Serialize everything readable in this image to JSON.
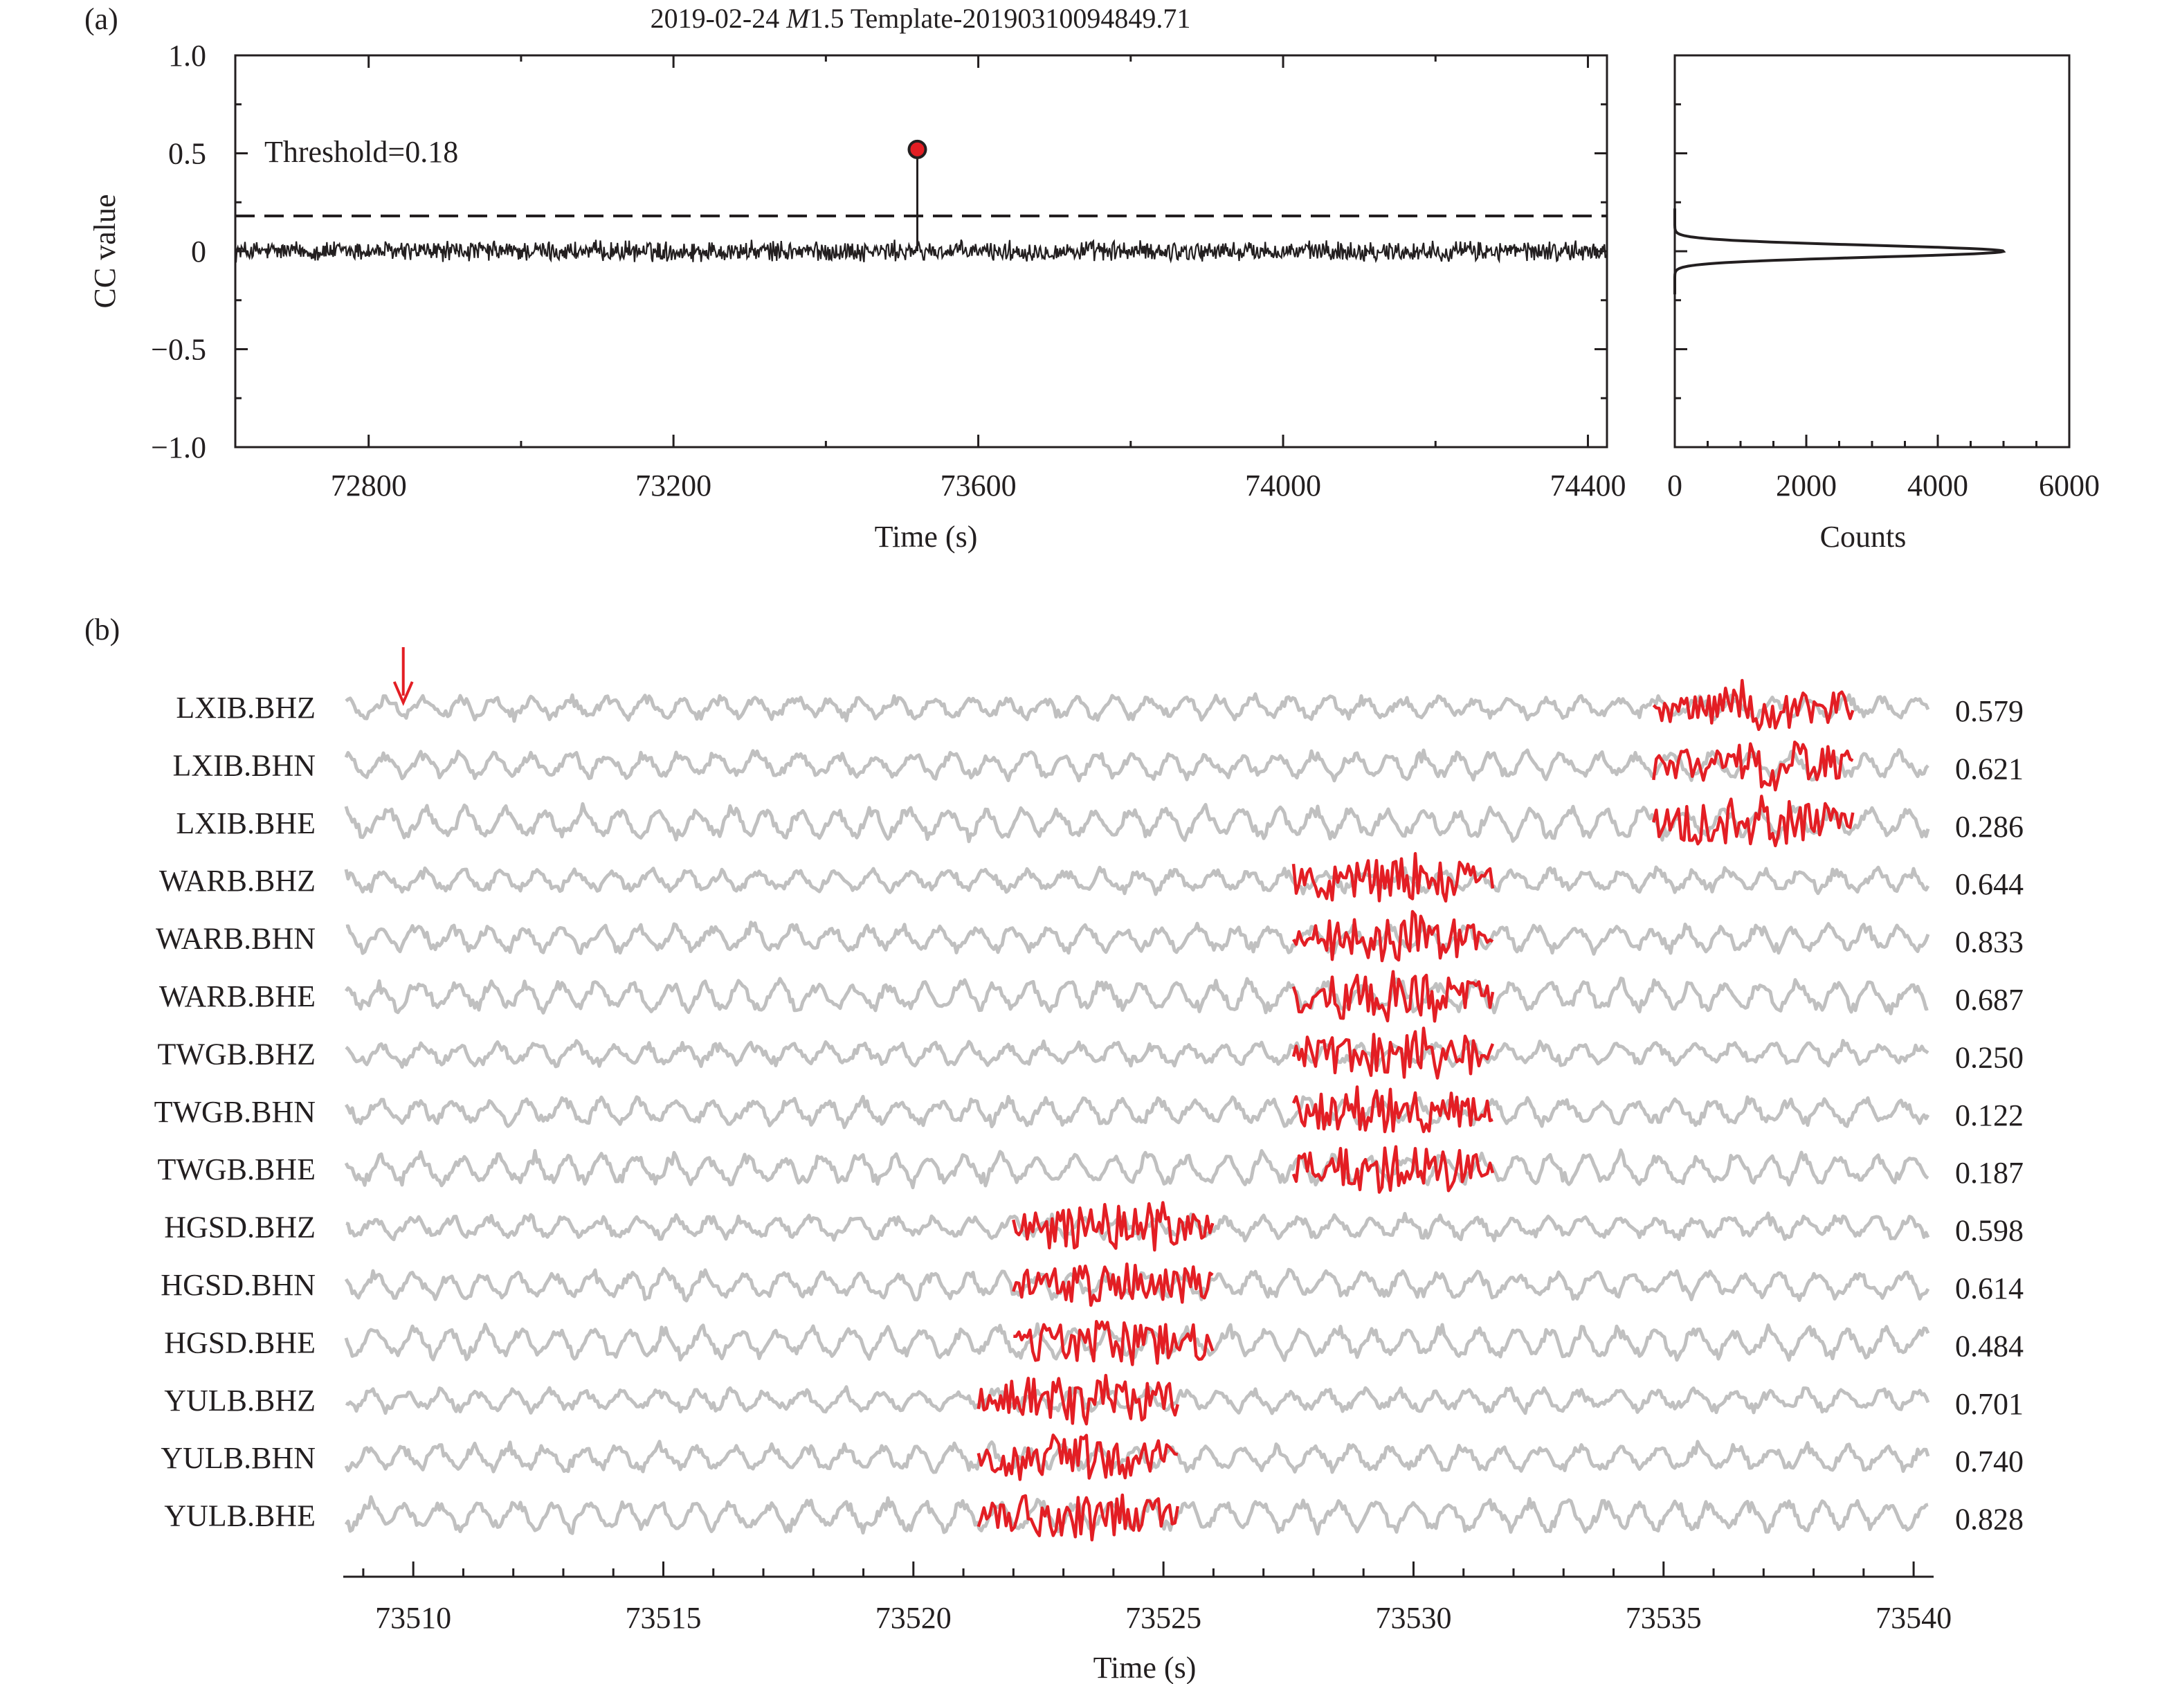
{
  "chart_data": [
    {
      "panel": "(a)",
      "type": "line",
      "title_parts": [
        "2019-02-24 ",
        "M",
        "1.5 Template-20190310094849.71"
      ],
      "xlabel": "Time (s)",
      "ylabel": "CC value",
      "xlim": [
        72625,
        74425
      ],
      "ylim": [
        -1.0,
        1.0
      ],
      "xticks": [
        72800,
        73200,
        73600,
        74000,
        74400
      ],
      "yticks": [
        "1.0",
        "0.5",
        "0",
        "−0.5",
        "−1.0"
      ],
      "threshold": 0.18,
      "threshold_label": "Threshold=0.18",
      "threshold_style": "dashed",
      "detections": [
        {
          "x": 73520,
          "y": 0.52,
          "color": "#e31e24"
        }
      ],
      "series": [
        {
          "description_values": "noise around 0 with amplitude ~0.04",
          "color": "#231f20"
        }
      ],
      "grid": false
    },
    {
      "panel": "",
      "type": "line",
      "xlabel": "Counts",
      "xlim": [
        0,
        6000
      ],
      "xticks": [
        0,
        2000,
        4000,
        6000
      ],
      "ylim": [
        -1.0,
        1.0
      ],
      "distribution": {
        "mean": 0.0,
        "sd": 0.03,
        "peak": 5000
      },
      "grid": false
    },
    {
      "panel": "(b)",
      "type": "line",
      "xlabel": "Time (s)",
      "xlim": [
        73508.6,
        73540.4
      ],
      "xticks": [
        73510,
        73515,
        73520,
        73525,
        73530,
        73535,
        73540
      ],
      "arrow_at": 73509.8,
      "trace_color": "#c0c0c0",
      "template_color": "#e31e24",
      "traces": [
        {
          "label": "LXIB.BHZ",
          "cc": "0.579",
          "tpl_start": 73534.8,
          "tpl_end": 73538.8
        },
        {
          "label": "LXIB.BHN",
          "cc": "0.621",
          "tpl_start": 73534.8,
          "tpl_end": 73538.8
        },
        {
          "label": "LXIB.BHE",
          "cc": "0.286",
          "tpl_start": 73534.8,
          "tpl_end": 73538.8
        },
        {
          "label": "WARB.BHZ",
          "cc": "0.644",
          "tpl_start": 73527.6,
          "tpl_end": 73531.6
        },
        {
          "label": "WARB.BHN",
          "cc": "0.833",
          "tpl_start": 73527.6,
          "tpl_end": 73531.6
        },
        {
          "label": "WARB.BHE",
          "cc": "0.687",
          "tpl_start": 73527.6,
          "tpl_end": 73531.6
        },
        {
          "label": "TWGB.BHZ",
          "cc": "0.250",
          "tpl_start": 73527.6,
          "tpl_end": 73531.6
        },
        {
          "label": "TWGB.BHN",
          "cc": "0.122",
          "tpl_start": 73527.6,
          "tpl_end": 73531.6
        },
        {
          "label": "TWGB.BHE",
          "cc": "0.187",
          "tpl_start": 73527.6,
          "tpl_end": 73531.6
        },
        {
          "label": "HGSD.BHZ",
          "cc": "0.598",
          "tpl_start": 73522.0,
          "tpl_end": 73526.0
        },
        {
          "label": "HGSD.BHN",
          "cc": "0.614",
          "tpl_start": 73522.0,
          "tpl_end": 73526.0
        },
        {
          "label": "HGSD.BHE",
          "cc": "0.484",
          "tpl_start": 73522.0,
          "tpl_end": 73526.0
        },
        {
          "label": "YULB.BHZ",
          "cc": "0.701",
          "tpl_start": 73521.3,
          "tpl_end": 73525.3
        },
        {
          "label": "YULB.BHN",
          "cc": "0.740",
          "tpl_start": 73521.3,
          "tpl_end": 73525.3
        },
        {
          "label": "YULB.BHE",
          "cc": "0.828",
          "tpl_start": 73521.3,
          "tpl_end": 73525.3
        }
      ],
      "grid": false
    }
  ]
}
